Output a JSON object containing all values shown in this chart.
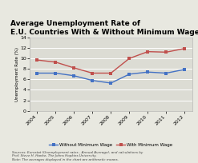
{
  "title": "Average Unemployment Rate of\nE.U. Countries With & Without Minimum Wages",
  "years": [
    2004,
    2005,
    2006,
    2007,
    2008,
    2009,
    2010,
    2011,
    2012
  ],
  "without_min_wage": [
    7.2,
    7.2,
    6.7,
    5.8,
    5.3,
    7.0,
    7.4,
    7.2,
    7.9
  ],
  "with_min_wage": [
    9.7,
    9.3,
    8.2,
    7.2,
    7.2,
    10.0,
    11.3,
    11.2,
    11.9
  ],
  "without_color": "#4472c4",
  "with_color": "#c0504d",
  "ylim": [
    0,
    14
  ],
  "yticks": [
    0,
    2,
    4,
    6,
    8,
    10,
    12,
    14
  ],
  "legend_without": "Without Minimum Wage",
  "legend_with": "With Minimum Wage",
  "source_note1": "Sources: Eurostat (Unemployment rates - Annual Average), and calculations by",
  "source_note2": "Prof. Steve H. Hanke, The Johns Hopkins University.",
  "source_note3": "Note: The averages displayed in the chart are arithmetic means.",
  "ylabel": "Unemployment Rate (%)",
  "bg_color": "#e8e8e0",
  "plot_bg": "#dcdcd4",
  "title_fontsize": 6.5,
  "tick_fontsize": 4.5,
  "ylabel_fontsize": 4,
  "legend_fontsize": 4,
  "source_fontsize": 3
}
